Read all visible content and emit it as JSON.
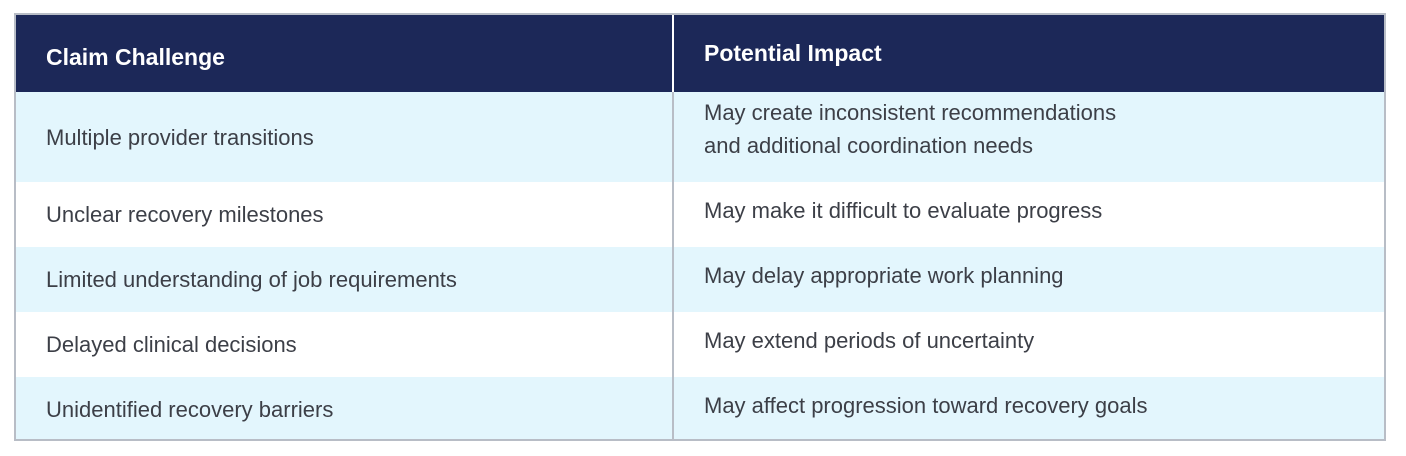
{
  "table": {
    "headers": [
      "Claim Challenge",
      "Potential Impact"
    ],
    "rows": [
      {
        "challenge": "Multiple provider transitions",
        "impact_line1": "May create inconsistent recommendations",
        "impact_line2": "and additional coordination needs"
      },
      {
        "challenge": "Unclear recovery milestones",
        "impact_line1": "May make it difficult to evaluate progress"
      },
      {
        "challenge": "Limited understanding of job requirements",
        "impact_line1": "May delay appropriate work planning"
      },
      {
        "challenge": "Delayed clinical decisions",
        "impact_line1": "May extend periods of uncertainty"
      },
      {
        "challenge": "Unidentified recovery barriers",
        "impact_line1": "May affect progression toward recovery goals"
      }
    ]
  },
  "colors": {
    "header_bg": "#1c2858",
    "stripe_bg": "#e3f6fd",
    "border": "#b8bdc6",
    "text": "#3c3f47"
  }
}
